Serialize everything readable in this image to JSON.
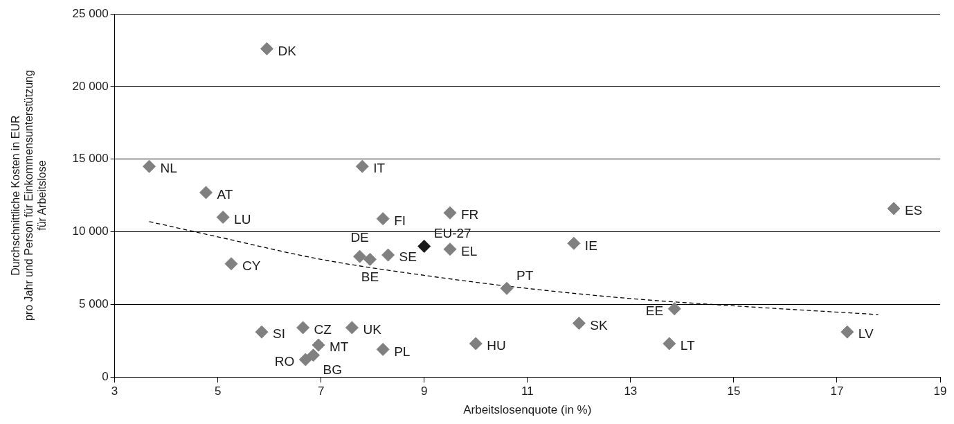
{
  "chart_data": {
    "type": "scatter",
    "xlabel": "Arbeitslosenquote (in %)",
    "ylabel": "Durchschnittliche Kosten in EUR\npro Jahr und Person für Einkommensunterstützung\nfür Arbeitslose",
    "xlim": [
      3,
      19
    ],
    "xticks": [
      3,
      5,
      7,
      9,
      11,
      13,
      15,
      17,
      19
    ],
    "ylim": [
      0,
      25000
    ],
    "yticks": [
      0,
      {
        "value": 5000,
        "label": "5 000"
      },
      {
        "value": 10000,
        "label": "10 000"
      },
      {
        "value": 15000,
        "label": "15 000"
      },
      {
        "value": 20000,
        "label": "20 000"
      },
      {
        "value": 25000,
        "label": "25 000"
      }
    ],
    "grid": "y",
    "legend": false,
    "marker": "diamond",
    "series": [
      {
        "color": "#808080",
        "x": [
          5.95,
          3.67,
          4.77,
          5.1,
          5.26,
          7.8,
          8.2,
          9.5,
          9.0,
          7.75,
          7.95,
          8.3,
          9.5,
          11.9,
          10.6,
          18.1,
          13.85,
          12.0,
          17.2,
          13.75,
          10.0,
          8.2,
          7.6,
          6.65,
          5.85,
          6.95,
          6.85,
          6.7
        ],
        "values": [
          22600,
          14500,
          12700,
          11000,
          7800,
          14500,
          10900,
          11300,
          9000,
          8300,
          8100,
          8400,
          8800,
          9200,
          6100,
          11600,
          4700,
          3700,
          3100,
          2300,
          2300,
          1900,
          3400,
          3400,
          3100,
          2200,
          1500,
          1200
        ],
        "colors": [
          null,
          null,
          null,
          null,
          null,
          null,
          null,
          null,
          "#1a1a1a",
          null,
          null,
          null,
          null,
          null,
          null,
          null,
          null,
          null,
          null,
          null,
          null,
          null,
          null,
          null,
          null,
          null,
          null,
          null
        ],
        "value_labels": [
          "DK",
          "NL",
          "AT",
          "LU",
          "CY",
          "IT",
          "FI",
          "FR",
          "EU-27",
          "DE",
          "BE",
          "SE",
          "EL",
          "IE",
          "PT",
          "ES",
          "EE",
          "SK",
          "LV",
          "LT",
          "HU",
          "PL",
          "UK",
          "CZ",
          "SI",
          "MT",
          "BG",
          "RO"
        ]
      },
      {
        "type": "line",
        "color": "#000000",
        "line_style": "dashed",
        "marker": "none",
        "x": [
          3.67,
          5,
          7,
          9,
          11,
          13,
          15,
          17.8
        ],
        "values": [
          10700,
          9650,
          8100,
          7000,
          6100,
          5400,
          4900,
          4300
        ]
      }
    ]
  }
}
